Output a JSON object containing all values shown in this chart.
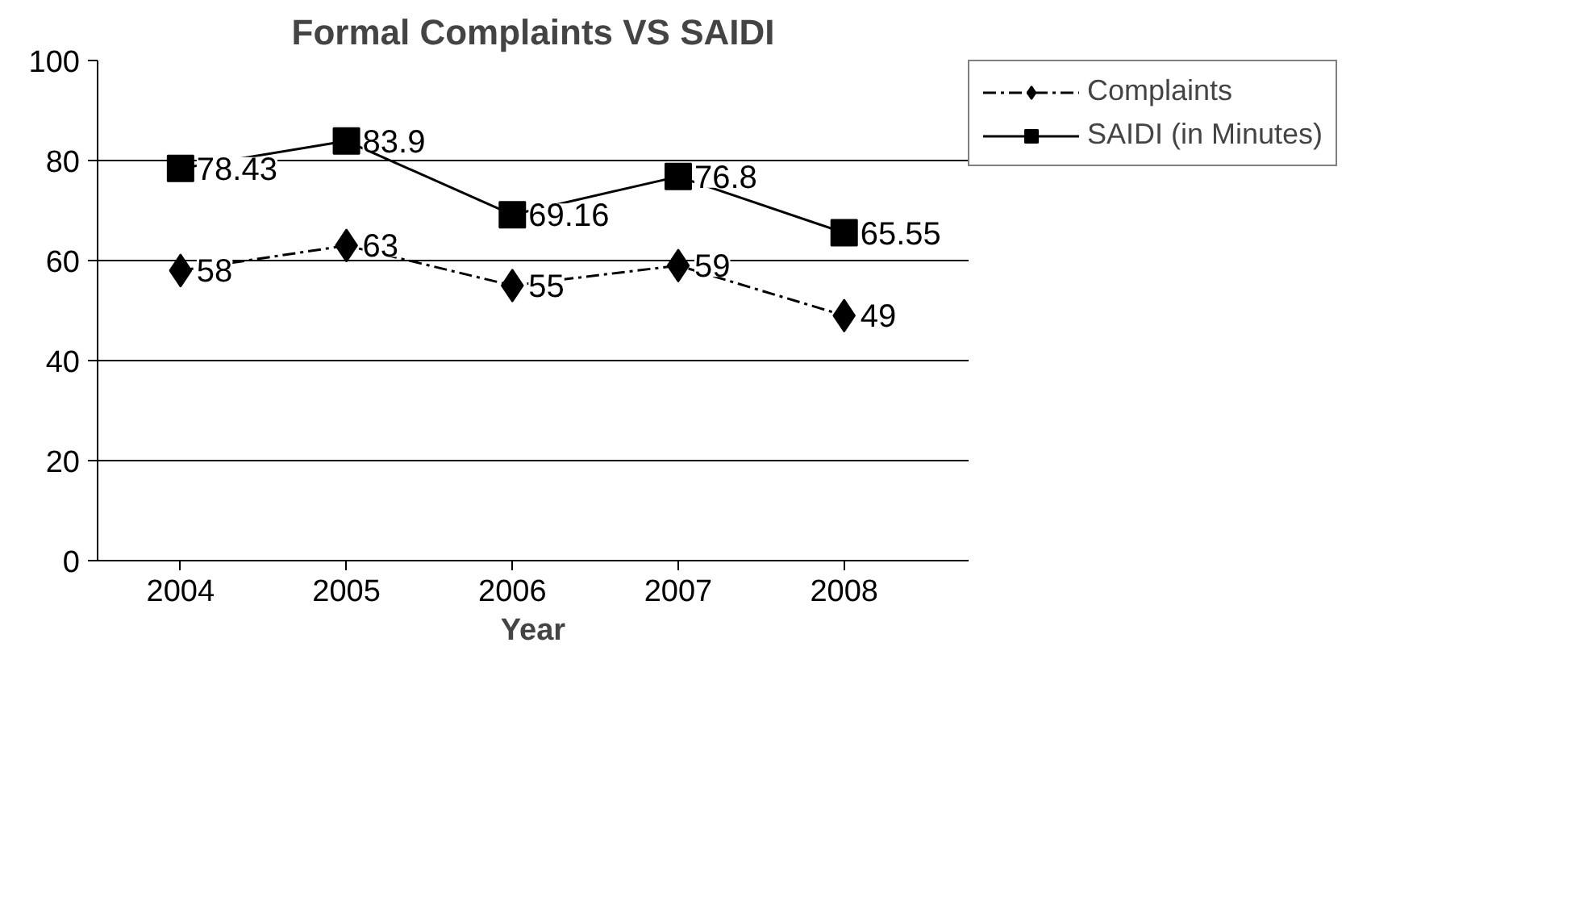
{
  "chart_data": {
    "type": "line",
    "title": "Formal Complaints VS SAIDI",
    "xlabel": "Year",
    "categories": [
      "2004",
      "2005",
      "2006",
      "2007",
      "2008"
    ],
    "series": [
      {
        "name": "Complaints",
        "color": "#000000",
        "values": [
          58,
          63,
          55,
          59,
          49
        ],
        "marker": "diamond",
        "line_style": "dashed"
      },
      {
        "name": "SAIDI (in Minutes)",
        "color": "#000000",
        "values": [
          78.43,
          83.9,
          69.16,
          76.8,
          65.55
        ],
        "marker": "square",
        "line_style": "solid"
      }
    ],
    "ylim": [
      0,
      100
    ],
    "yticks": [
      0,
      20,
      40,
      60,
      80,
      100
    ],
    "grid": "y",
    "legend": "right",
    "data_labels": true
  }
}
